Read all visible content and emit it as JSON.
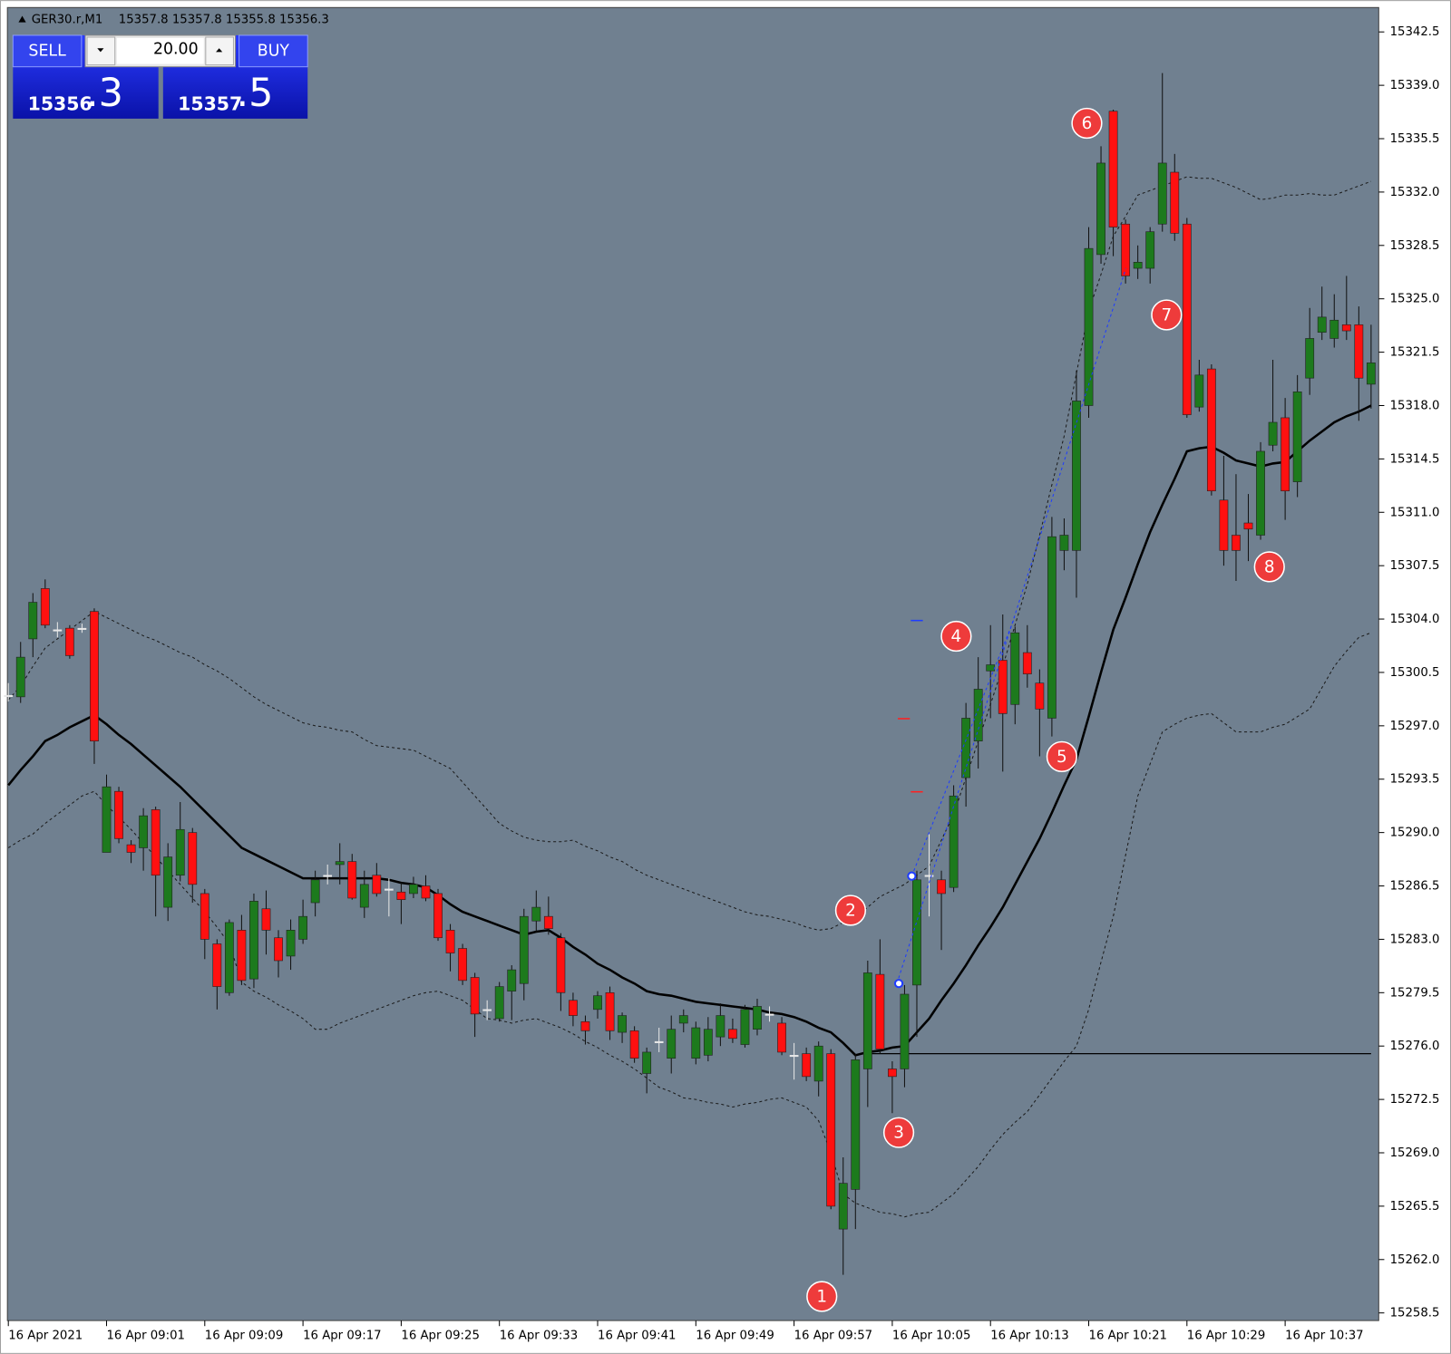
{
  "header": {
    "symbol": "GER30.r,M1",
    "ohlc": "15357.8 15357.8 15355.8 15356.3"
  },
  "panel": {
    "sell": "SELL",
    "buy": "BUY",
    "volume": "20.00",
    "bid_big": "15356",
    "bid_small": ".3",
    "ask_big": "15357",
    "ask_small": ".5"
  },
  "chart_data": {
    "type": "candlestick",
    "categories": [
      "16 Apr 2021",
      null,
      null,
      null,
      null,
      null,
      null,
      null,
      "16 Apr 09:01",
      null,
      null,
      null,
      null,
      null,
      null,
      null,
      "16 Apr 09:09",
      null,
      null,
      null,
      null,
      null,
      null,
      null,
      "16 Apr 09:17",
      null,
      null,
      null,
      null,
      null,
      null,
      null,
      "16 Apr 09:25",
      null,
      null,
      null,
      null,
      null,
      null,
      null,
      "16 Apr 09:33",
      null,
      null,
      null,
      null,
      null,
      null,
      null,
      "16 Apr 09:41",
      null,
      null,
      null,
      null,
      null,
      null,
      null,
      "16 Apr 09:49",
      null,
      null,
      null,
      null,
      null,
      null,
      null,
      "16 Apr 09:57",
      null,
      null,
      null,
      null,
      null,
      null,
      null,
      "16 Apr 10:05",
      null,
      null,
      null,
      null,
      null,
      null,
      null,
      "16 Apr 10:13",
      null,
      null,
      null,
      null,
      null,
      null,
      null,
      "16 Apr 10:21",
      null,
      null,
      null,
      null,
      null,
      null,
      null,
      "16 Apr 10:29",
      null,
      null,
      null,
      null,
      null,
      null,
      null,
      "16 Apr 10:37",
      null,
      null,
      null,
      null,
      null,
      null,
      null
    ],
    "open": [
      15299.0,
      15298.9,
      15302.7,
      15306.0,
      15303.3,
      15303.4,
      15303.4,
      15304.5,
      15288.7,
      15292.7,
      15289.2,
      15289.0,
      15291.5,
      15285.1,
      15287.2,
      15290.0,
      15286.0,
      15282.7,
      15279.5,
      15283.6,
      15280.4,
      15285.0,
      15283.1,
      15281.9,
      15283.0,
      15285.4,
      15287.2,
      15287.9,
      15288.1,
      15285.1,
      15287.2,
      15286.3,
      15286.1,
      15286.0,
      15286.5,
      15286.0,
      15283.6,
      15282.4,
      15280.5,
      15278.4,
      15277.8,
      15279.6,
      15280.1,
      15284.2,
      15284.5,
      15283.1,
      15279.0,
      15277.6,
      15278.4,
      15279.5,
      15276.9,
      15277.0,
      15274.2,
      15276.3,
      15275.2,
      15277.5,
      15275.2,
      15275.4,
      15276.6,
      15277.1,
      15276.1,
      15277.1,
      15278.1,
      15277.5,
      15275.4,
      15275.5,
      15273.7,
      15275.5,
      15264.0,
      15266.6,
      15274.5,
      15280.7,
      15274.5,
      15274.5,
      15280.0,
      15287.2,
      15286.9,
      15286.4,
      15293.6,
      15296.0,
      15300.6,
      15301.3,
      15298.4,
      15301.8,
      15299.8,
      15297.5,
      15308.5,
      15308.5,
      15318.0,
      15327.9,
      15337.3,
      15329.9,
      15327.0,
      15327.0,
      15329.9,
      15333.3,
      15329.9,
      15317.9,
      15320.4,
      15311.8,
      15309.5,
      15310.3,
      15309.5,
      15315.4,
      15317.2,
      15313.0,
      15319.8,
      15322.8,
      15322.4,
      15323.3,
      15323.3,
      15319.4
    ],
    "high": [
      15299.8,
      15302.5,
      15305.7,
      15306.6,
      15303.8,
      15303.6,
      15303.7,
      15304.7,
      15293.8,
      15293.0,
      15289.5,
      15291.6,
      15291.7,
      15289.3,
      15292.0,
      15290.3,
      15286.3,
      15283.0,
      15284.3,
      15284.6,
      15286.0,
      15286.2,
      15283.6,
      15284.3,
      15285.6,
      15287.5,
      15287.9,
      15289.3,
      15288.6,
      15287.5,
      15288.0,
      15287.0,
      15286.7,
      15287.1,
      15287.2,
      15286.3,
      15284.0,
      15282.7,
      15280.8,
      15279.0,
      15280.2,
      15281.3,
      15285.0,
      15286.2,
      15285.8,
      15283.4,
      15279.5,
      15278.0,
      15279.6,
      15279.9,
      15278.2,
      15277.3,
      15275.9,
      15277.2,
      15278.0,
      15278.4,
      15277.6,
      15277.9,
      15278.8,
      15277.8,
      15278.7,
      15279.1,
      15278.6,
      15277.9,
      15276.2,
      15275.9,
      15276.3,
      15275.8,
      15268.7,
      15275.5,
      15281.6,
      15283.0,
      15275.0,
      15280.0,
      15287.5,
      15289.9,
      15287.5,
      15293.1,
      15298.5,
      15301.5,
      15303.6,
      15304.3,
      15303.5,
      15303.6,
      15300.7,
      15310.7,
      15310.6,
      15320.3,
      15329.7,
      15335.0,
      15337.4,
      15330.2,
      15328.5,
      15329.7,
      15339.8,
      15334.5,
      15330.3,
      15321.0,
      15320.7,
      15314.7,
      15313.5,
      15312.2,
      15315.6,
      15321.0,
      15318.5,
      15320.0,
      15324.4,
      15325.8,
      15325.3,
      15326.5,
      15324.5,
      15323.3
    ],
    "low": [
      15298.6,
      15298.5,
      15301.5,
      15303.4,
      15302.8,
      15301.4,
      15303.1,
      15294.5,
      15288.7,
      15289.3,
      15288.0,
      15287.5,
      15284.5,
      15284.2,
      15286.8,
      15285.4,
      15281.7,
      15278.4,
      15279.3,
      15280.0,
      15279.8,
      15282.0,
      15280.5,
      15281.0,
      15282.7,
      15284.5,
      15286.6,
      15286.6,
      15285.6,
      15284.4,
      15285.8,
      15284.5,
      15284.0,
      15285.7,
      15285.5,
      15282.9,
      15280.9,
      15280.0,
      15276.6,
      15277.7,
      15277.6,
      15277.7,
      15279.0,
      15283.5,
      15283.3,
      15278.3,
      15277.3,
      15276.1,
      15277.8,
      15276.4,
      15276.2,
      15274.9,
      15272.9,
      15275.6,
      15274.2,
      15276.9,
      15274.8,
      15275.0,
      15276.0,
      15276.2,
      15275.9,
      15276.7,
      15277.6,
      15275.4,
      15273.8,
      15273.7,
      15272.7,
      15265.3,
      15261.0,
      15264.0,
      15272.0,
      15275.5,
      15271.6,
      15273.3,
      15276.6,
      15284.5,
      15282.3,
      15286.1,
      15291.7,
      15294.2,
      15297.5,
      15294.0,
      15297.1,
      15299.5,
      15295.0,
      15296.3,
      15307.2,
      15305.4,
      15317.2,
      15327.3,
      15327.8,
      15326.0,
      15326.3,
      15326.0,
      15329.4,
      15328.8,
      15317.2,
      15317.6,
      15312.1,
      15307.5,
      15306.5,
      15307.8,
      15309.2,
      15315.0,
      15310.5,
      15312.0,
      15318.7,
      15322.3,
      15321.8,
      15322.3,
      15317.0,
      15317.8
    ],
    "close": [
      15299.0,
      15301.5,
      15305.1,
      15303.6,
      15303.3,
      15301.6,
      15303.4,
      15296.0,
      15293.0,
      15289.6,
      15288.7,
      15291.1,
      15287.2,
      15288.4,
      15290.2,
      15286.6,
      15283.0,
      15279.9,
      15284.1,
      15280.3,
      15285.5,
      15283.6,
      15281.6,
      15283.6,
      15284.5,
      15286.9,
      15287.2,
      15288.1,
      15285.7,
      15286.6,
      15286.0,
      15286.3,
      15285.6,
      15286.6,
      15285.7,
      15283.1,
      15282.1,
      15280.3,
      15278.1,
      15278.4,
      15279.9,
      15281.0,
      15284.5,
      15285.1,
      15283.7,
      15279.5,
      15278.0,
      15277.0,
      15279.3,
      15277.0,
      15278.0,
      15275.2,
      15275.6,
      15276.3,
      15277.1,
      15278.0,
      15277.2,
      15277.1,
      15278.0,
      15276.5,
      15278.4,
      15278.6,
      15278.1,
      15275.6,
      15275.4,
      15274.0,
      15276.0,
      15265.5,
      15267.0,
      15275.1,
      15280.8,
      15275.8,
      15274.0,
      15279.4,
      15286.9,
      15287.2,
      15286.0,
      15292.4,
      15297.5,
      15299.4,
      15301.0,
      15297.8,
      15303.1,
      15300.4,
      15298.1,
      15309.4,
      15309.5,
      15318.3,
      15328.3,
      15333.9,
      15329.7,
      15326.5,
      15327.4,
      15329.4,
      15333.9,
      15329.3,
      15317.4,
      15320.0,
      15312.4,
      15308.5,
      15308.5,
      15309.9,
      15315.0,
      15316.9,
      15312.4,
      15318.9,
      15322.4,
      15323.8,
      15323.6,
      15322.9,
      15319.8,
      15320.8
    ],
    "up_color": "#1d7a1d",
    "down_color": "#ff1010",
    "doji_color": "#e8e8e8",
    "background": "#708090",
    "lines": [
      {
        "color": "#000000",
        "dashed": false,
        "values": [
          15293.1,
          15294.1,
          15295.0,
          15296.0,
          15296.4,
          15296.9,
          15297.3,
          15297.7,
          15297.1,
          15296.4,
          15295.8,
          15295.1,
          15294.4,
          15293.7,
          15293.0,
          15292.2,
          15291.4,
          15290.6,
          15289.8,
          15289.0,
          15288.6,
          15288.2,
          15287.8,
          15287.4,
          15287.0,
          15287.0,
          15287.0,
          15287.0,
          15287.0,
          15287.0,
          15287.0,
          15286.9,
          15286.7,
          15286.6,
          15286.4,
          15285.9,
          15285.3,
          15284.8,
          15284.5,
          15284.2,
          15283.9,
          15283.6,
          15283.3,
          15283.5,
          15283.6,
          15283.1,
          15282.5,
          15282.0,
          15281.4,
          15281.0,
          15280.5,
          15280.1,
          15279.6,
          15279.4,
          15279.3,
          15279.1,
          15278.9,
          15278.8,
          15278.7,
          15278.6,
          15278.5,
          15278.4,
          15278.2,
          15278.1,
          15277.9,
          15277.6,
          15277.2,
          15276.9,
          15276.2,
          15275.4,
          15275.6,
          15275.7,
          15275.9,
          15276.0,
          15276.9,
          15277.8,
          15279.0,
          15280.1,
          15281.3,
          15282.6,
          15283.8,
          15285.1,
          15286.6,
          15288.1,
          15289.6,
          15291.3,
          15293.1,
          15294.8,
          15297.6,
          15300.5,
          15303.3,
          15305.4,
          15307.6,
          15309.7,
          15311.5,
          15313.2,
          15315.0,
          15315.2,
          15315.3,
          15314.9,
          15314.4,
          15314.2,
          15314.0,
          15314.2,
          15314.3,
          15315.0,
          15315.7,
          15316.3,
          15316.9,
          15317.3,
          15317.6,
          15318.0
        ]
      },
      {
        "color": "#1a1a1a",
        "dashed": true,
        "values": [
          15298.7,
          15299.6,
          15300.9,
          15302.1,
          15302.7,
          15303.3,
          15303.9,
          15304.5,
          15304.1,
          15303.7,
          15303.3,
          15302.9,
          15302.6,
          15302.2,
          15301.8,
          15301.5,
          15301.0,
          15300.6,
          15300.1,
          15299.5,
          15298.9,
          15298.4,
          15298.0,
          15297.6,
          15297.2,
          15297.0,
          15296.9,
          15296.7,
          15296.6,
          15296.1,
          15295.7,
          15295.6,
          15295.5,
          15295.4,
          15295.0,
          15294.6,
          15294.2,
          15293.3,
          15292.4,
          15291.5,
          15290.6,
          15290.1,
          15289.7,
          15289.5,
          15289.4,
          15289.4,
          15289.5,
          15289.1,
          15288.8,
          15288.4,
          15288.1,
          15287.6,
          15287.2,
          15286.9,
          15286.6,
          15286.3,
          15286.0,
          15285.7,
          15285.4,
          15285.1,
          15284.8,
          15284.6,
          15284.5,
          15284.3,
          15284.1,
          15283.8,
          15283.6,
          15283.7,
          15284.1,
          15284.5,
          15285.1,
          15285.8,
          15286.2,
          15286.6,
          15287.2,
          15287.8,
          15289.5,
          15291.2,
          15293.6,
          15296.0,
          15298.4,
          15300.9,
          15303.6,
          15306.3,
          15309.5,
          15312.8,
          15316.0,
          15320.1,
          15324.2,
          15326.6,
          15329.1,
          15330.4,
          15331.8,
          15332.1,
          15332.4,
          15332.7,
          15333.0,
          15332.9,
          15332.9,
          15332.6,
          15332.3,
          15331.9,
          15331.5,
          15331.6,
          15331.8,
          15331.8,
          15331.9,
          15331.8,
          15331.8,
          15332.1,
          15332.4,
          15332.7
        ]
      },
      {
        "color": "#1a1a1a",
        "dashed": true,
        "values": [
          15289.0,
          15289.5,
          15289.9,
          15290.6,
          15291.2,
          15291.8,
          15292.4,
          15292.7,
          15291.8,
          15291.0,
          15290.2,
          15289.3,
          15288.4,
          15287.5,
          15286.6,
          15285.7,
          15284.8,
          15283.8,
          15282.7,
          15280.2,
          15279.6,
          15279.2,
          15278.7,
          15278.3,
          15277.8,
          15277.1,
          15277.1,
          15277.5,
          15277.8,
          15278.1,
          15278.4,
          15278.7,
          15279.0,
          15279.3,
          15279.5,
          15279.6,
          15279.3,
          15279.0,
          15278.4,
          15277.8,
          15277.7,
          15277.5,
          15277.7,
          15277.8,
          15277.5,
          15277.2,
          15276.8,
          15276.3,
          15275.9,
          15275.4,
          15275.0,
          15274.5,
          15273.9,
          15273.3,
          15273.0,
          15272.6,
          15272.5,
          15272.3,
          15272.2,
          15272.0,
          15272.2,
          15272.3,
          15272.5,
          15272.6,
          15272.3,
          15272.0,
          15271.1,
          15269.0,
          15266.3,
          15265.7,
          15265.4,
          15265.1,
          15265.0,
          15264.8,
          15265.0,
          15265.1,
          15265.7,
          15266.3,
          15267.2,
          15268.1,
          15269.2,
          15270.2,
          15271.0,
          15271.7,
          15272.8,
          15273.9,
          15275.0,
          15276.0,
          15278.4,
          15281.5,
          15284.5,
          15288.5,
          15292.4,
          15294.5,
          15296.6,
          15297.1,
          15297.5,
          15297.7,
          15297.8,
          15297.2,
          15296.6,
          15296.6,
          15296.6,
          15296.9,
          15297.1,
          15297.6,
          15298.1,
          15299.5,
          15300.9,
          15301.9,
          15302.8,
          15303.1
        ]
      }
    ],
    "hline": {
      "value": 15275.5,
      "start": 70
    },
    "annotations": [
      "1",
      "2",
      "3",
      "4",
      "5",
      "6",
      "7",
      "8"
    ],
    "ylim": [
      15258.0,
      15344.1
    ],
    "yticks": [
      {
        "value": 15258.5,
        "label": "15258.5"
      },
      {
        "value": 15262,
        "label": "15262.0"
      },
      {
        "value": 15265.5,
        "label": "15265.5"
      },
      {
        "value": 15269,
        "label": "15269.0"
      },
      {
        "value": 15272.5,
        "label": "15272.5"
      },
      {
        "value": 15276,
        "label": "15276.0"
      },
      {
        "value": 15279.5,
        "label": "15279.5"
      },
      {
        "value": 15283,
        "label": "15283.0"
      },
      {
        "value": 15286.5,
        "label": "15286.5"
      },
      {
        "value": 15290,
        "label": "15290.0"
      },
      {
        "value": 15293.5,
        "label": "15293.5"
      },
      {
        "value": 15297,
        "label": "15297.0"
      },
      {
        "value": 15300.5,
        "label": "15300.5"
      },
      {
        "value": 15304,
        "label": "15304.0"
      },
      {
        "value": 15307.5,
        "label": "15307.5"
      },
      {
        "value": 15311,
        "label": "15311.0"
      },
      {
        "value": 15314.5,
        "label": "15314.5"
      },
      {
        "value": 15318,
        "label": "15318.0"
      },
      {
        "value": 15321.5,
        "label": "15321.5"
      },
      {
        "value": 15325,
        "label": "15325.0"
      },
      {
        "value": 15328.5,
        "label": "15328.5"
      },
      {
        "value": 15332,
        "label": "15332.0"
      },
      {
        "value": 15335.5,
        "label": "15335.5"
      },
      {
        "value": 15339,
        "label": "15339.0"
      },
      {
        "value": 15342.5,
        "label": "15342.5"
      }
    ],
    "grid": false
  }
}
